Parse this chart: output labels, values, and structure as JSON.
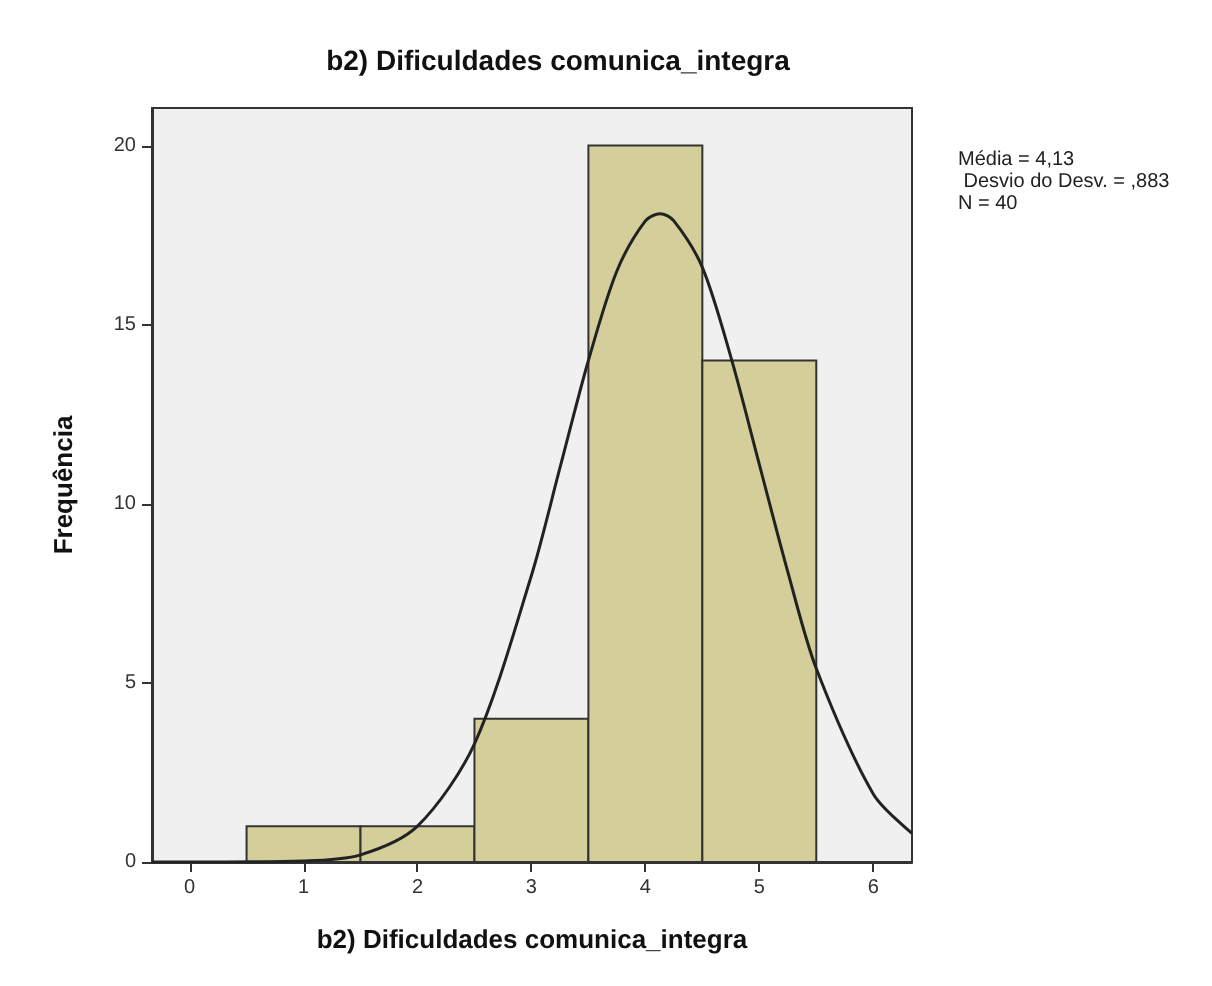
{
  "chart_data": {
    "type": "histogram",
    "title": "b2) Dificuldades comunica_integra",
    "xlabel": "b2) Dificuldades comunica_integra",
    "ylabel": "Frequência",
    "bins": [
      0.5,
      1.5,
      2.5,
      3.5,
      4.5,
      5.5
    ],
    "values": [
      1,
      1,
      4,
      20,
      14
    ],
    "color": "#d4cf9a",
    "series": [
      {
        "type": "line",
        "color": "#222222",
        "x": [
          -0.33,
          0,
          1,
          1.5,
          2,
          2.5,
          3,
          3.25,
          3.5,
          3.75,
          4,
          4.13,
          4.25,
          4.5,
          4.75,
          5,
          5.25,
          5.5,
          6,
          6.34
        ],
        "values": [
          0,
          0,
          0.03,
          0.2,
          1,
          3.3,
          8,
          11,
          14,
          16.5,
          17.9,
          18.1,
          17.9,
          16.6,
          14.1,
          11.1,
          8.1,
          5.4,
          1.9,
          0.8
        ]
      }
    ],
    "xlim": [
      -0.33,
      6.34
    ],
    "xticks": [
      0,
      1,
      2,
      3,
      4,
      5,
      6
    ],
    "ylim": [
      0,
      21.05
    ],
    "yticks": [
      0,
      5,
      10,
      15,
      20
    ],
    "grid": false,
    "marker": "none",
    "line_style": "solid",
    "annotations": [
      "Média = 4,13",
      " Desvio do Desv. = ,883",
      "N = 40"
    ]
  }
}
